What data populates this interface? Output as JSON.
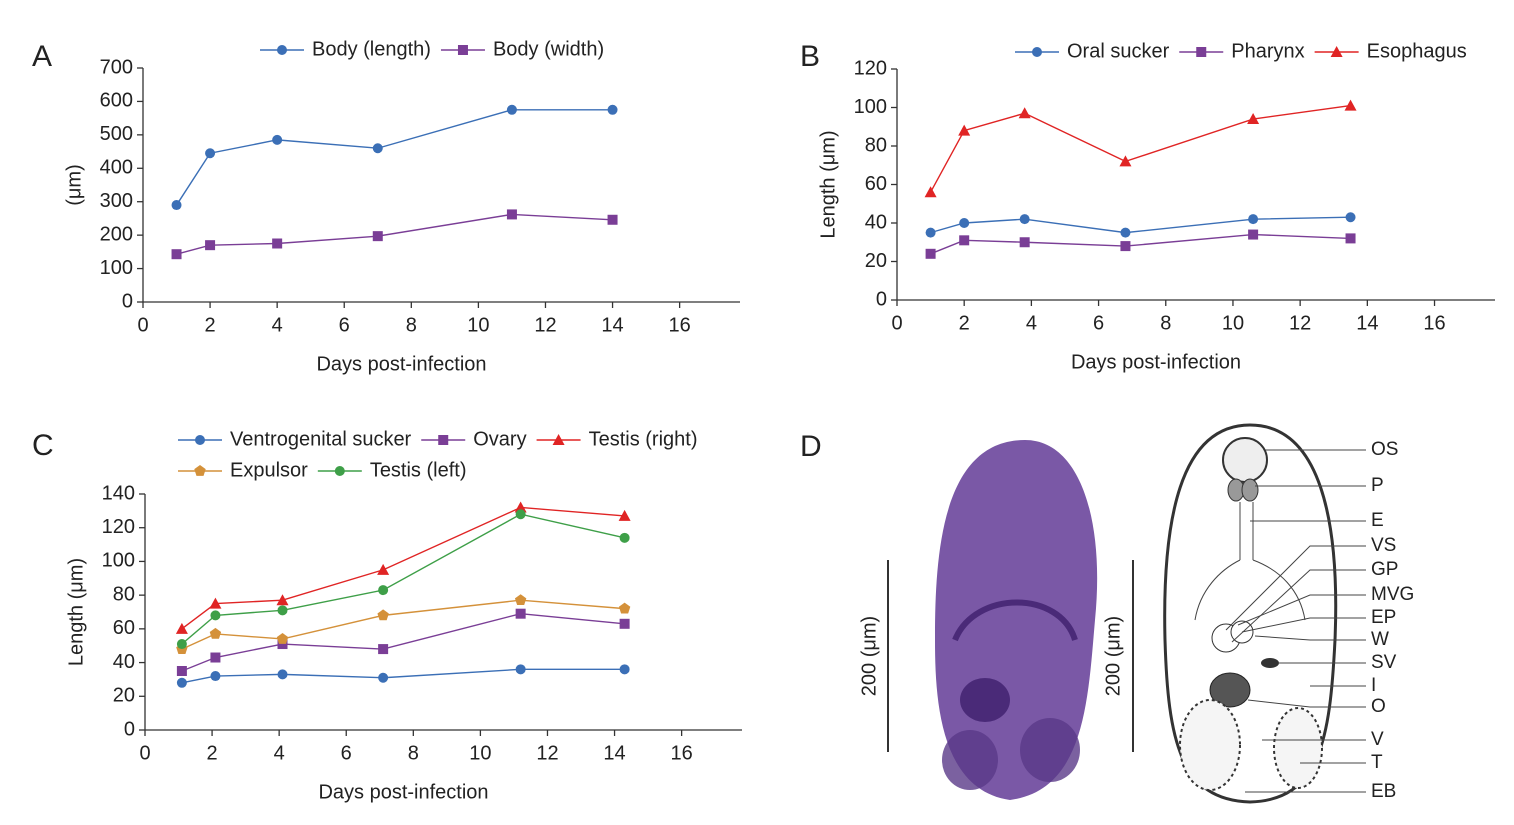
{
  "chart_data": [
    {
      "type": "line",
      "panel_label": "A",
      "ylabel": "(μm)",
      "xlabel": "Days post-infection",
      "x": [
        1,
        2,
        4,
        7,
        11,
        14
      ],
      "series": [
        {
          "name": "Body (length)",
          "color": "#3b6fb6",
          "marker": "circle",
          "values": [
            290,
            445,
            485,
            460,
            575,
            575
          ]
        },
        {
          "name": "Body (width)",
          "color": "#7a3e96",
          "marker": "square",
          "values": [
            143,
            170,
            175,
            197,
            262,
            246
          ]
        }
      ],
      "xlim": [
        0,
        17.8
      ],
      "ylim": [
        0,
        700
      ],
      "xticks": [
        0,
        2,
        4,
        6,
        8,
        10,
        12,
        14,
        16
      ],
      "yticks": [
        0,
        100,
        200,
        300,
        400,
        500,
        600,
        700
      ],
      "grid": false
    },
    {
      "type": "line",
      "panel_label": "B",
      "ylabel": "Length (μm)",
      "xlabel": "Days post-infection",
      "x": [
        1,
        2,
        3.8,
        6.8,
        10.6,
        13.5
      ],
      "series": [
        {
          "name": "Oral sucker",
          "color": "#3b6fb6",
          "marker": "circle",
          "values": [
            35,
            40,
            42,
            35,
            42,
            43
          ]
        },
        {
          "name": "Pharynx",
          "color": "#7a3e96",
          "marker": "square",
          "values": [
            24,
            31,
            30,
            28,
            34,
            32
          ]
        },
        {
          "name": "Esophagus",
          "color": "#e02424",
          "marker": "triangle",
          "values": [
            56,
            88,
            97,
            72,
            94,
            101
          ]
        }
      ],
      "xlim": [
        0,
        17.8
      ],
      "ylim": [
        0,
        120
      ],
      "xticks": [
        0,
        2,
        4,
        6,
        8,
        10,
        12,
        14,
        16
      ],
      "yticks": [
        0,
        20,
        40,
        60,
        80,
        100,
        120
      ],
      "grid": false
    },
    {
      "type": "line",
      "panel_label": "C",
      "ylabel": "Length (μm)",
      "xlabel": "Days post-infection",
      "x": [
        1.1,
        2.1,
        4.1,
        7.1,
        11.2,
        14.3
      ],
      "series": [
        {
          "name": "Ventrogenital sucker",
          "color": "#3b6fb6",
          "marker": "circle",
          "values": [
            28,
            32,
            33,
            31,
            36,
            36
          ]
        },
        {
          "name": "Ovary",
          "color": "#7a3e96",
          "marker": "square",
          "values": [
            35,
            43,
            51,
            48,
            69,
            63
          ]
        },
        {
          "name": "Testis (right)",
          "color": "#e02424",
          "marker": "triangle",
          "values": [
            60,
            75,
            77,
            95,
            132,
            127
          ]
        },
        {
          "name": "Expulsor",
          "color": "#d4913a",
          "marker": "pentagon",
          "values": [
            48,
            57,
            54,
            68,
            77,
            72
          ]
        },
        {
          "name": "Testis (left)",
          "color": "#3e9f48",
          "marker": "circle",
          "values": [
            51,
            68,
            71,
            83,
            128,
            114
          ]
        }
      ],
      "xlim": [
        0,
        17.8
      ],
      "ylim": [
        0,
        140
      ],
      "xticks": [
        0,
        2,
        4,
        6,
        8,
        10,
        12,
        14,
        16
      ],
      "yticks": [
        0,
        20,
        40,
        60,
        80,
        100,
        120,
        140
      ],
      "grid": false
    }
  ],
  "diagram": {
    "panel_label": "D",
    "scale_labels": [
      "200 (μm)",
      "200 (μm)"
    ],
    "labels": [
      "OS",
      "P",
      "E",
      "VS",
      "GP",
      "MVG",
      "EP",
      "W",
      "SV",
      "I",
      "O",
      "V",
      "T",
      "EB"
    ]
  }
}
